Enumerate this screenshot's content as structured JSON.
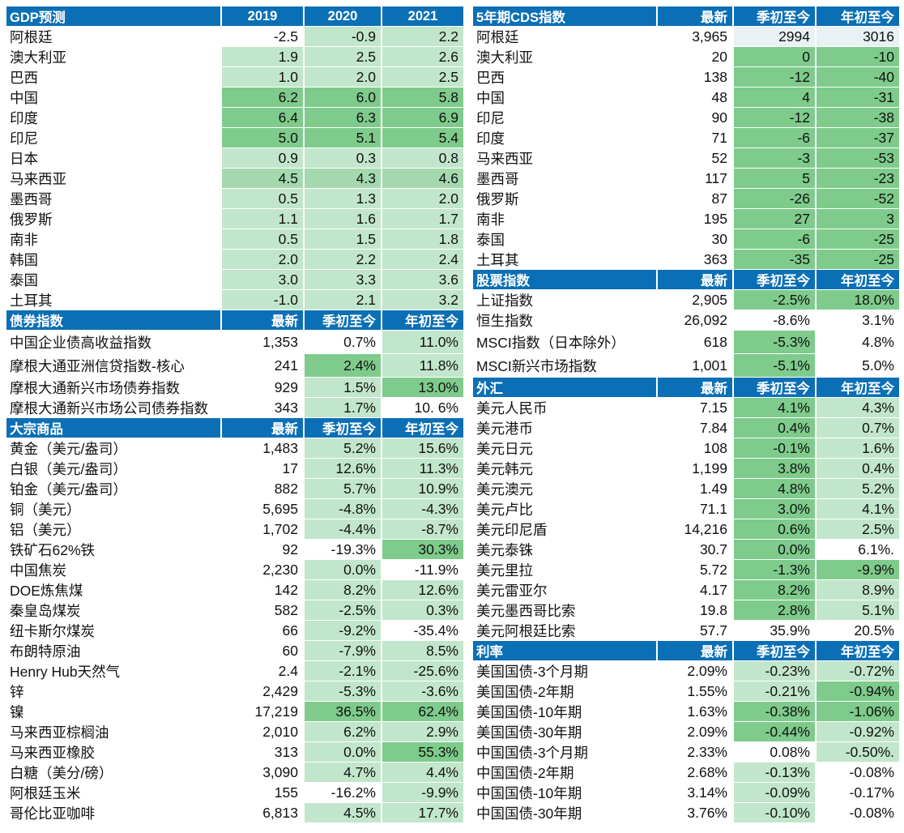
{
  "left": [
    {
      "kind": "header",
      "cells": [
        "GDP预测",
        "2019",
        "2020",
        "2021"
      ],
      "align": [
        "label",
        "yr",
        "yr",
        "yr"
      ]
    },
    {
      "cells": [
        "阿根廷",
        "-2.5",
        "-0.9",
        "2.2"
      ],
      "shades": [
        "w",
        "w",
        "l",
        "l"
      ]
    },
    {
      "cells": [
        "澳大利亚",
        "1.9",
        "2.5",
        "2.6"
      ],
      "shades": [
        "w",
        "l",
        "l",
        "l"
      ]
    },
    {
      "cells": [
        "巴西",
        "1.0",
        "2.0",
        "2.5"
      ],
      "shades": [
        "w",
        "l",
        "l",
        "l"
      ]
    },
    {
      "cells": [
        "中国",
        "6.2",
        "6.0",
        "5.8"
      ],
      "shades": [
        "w",
        "d",
        "d",
        "d"
      ]
    },
    {
      "cells": [
        "印度",
        "6.4",
        "6.3",
        "6.9"
      ],
      "shades": [
        "w",
        "d",
        "d",
        "d"
      ]
    },
    {
      "cells": [
        "印尼",
        "5.0",
        "5.1",
        "5.4"
      ],
      "shades": [
        "w",
        "d",
        "d",
        "d"
      ]
    },
    {
      "cells": [
        "日本",
        "0.9",
        "0.3",
        "0.8"
      ],
      "shades": [
        "w",
        "l",
        "l",
        "l"
      ]
    },
    {
      "cells": [
        "马来西亚",
        "4.5",
        "4.3",
        "4.6"
      ],
      "shades": [
        "w",
        "m",
        "m",
        "m"
      ]
    },
    {
      "cells": [
        "墨西哥",
        "0.5",
        "1.3",
        "2.0"
      ],
      "shades": [
        "w",
        "l",
        "l",
        "l"
      ]
    },
    {
      "cells": [
        "俄罗斯",
        "1.1",
        "1.6",
        "1.7"
      ],
      "shades": [
        "w",
        "l",
        "l",
        "l"
      ]
    },
    {
      "cells": [
        "南非",
        "0.5",
        "1.5",
        "1.8"
      ],
      "shades": [
        "w",
        "l",
        "l",
        "l"
      ]
    },
    {
      "cells": [
        "韩国",
        "2.0",
        "2.2",
        "2.4"
      ],
      "shades": [
        "w",
        "l",
        "l",
        "l"
      ]
    },
    {
      "cells": [
        "泰国",
        "3.0",
        "3.3",
        "3.6"
      ],
      "shades": [
        "w",
        "l",
        "l",
        "l"
      ]
    },
    {
      "cells": [
        "土耳其",
        "-1.0",
        "2.1",
        "3.2"
      ],
      "shades": [
        "w",
        "l",
        "l",
        "l"
      ]
    },
    {
      "kind": "header",
      "cells": [
        "债券指数",
        "最新",
        "季初至今",
        "年初至今"
      ],
      "align": [
        "label",
        "num",
        "num",
        "num"
      ]
    },
    {
      "tall": true,
      "cells": [
        "中国企业债高收益指数",
        "1,353",
        "0.7%",
        "11.0%"
      ],
      "shades": [
        "w",
        "w",
        "w",
        "l"
      ]
    },
    {
      "tall": true,
      "cells": [
        "摩根大通亚洲信贷指数-核心",
        "241",
        "2.4%",
        "11.8%"
      ],
      "shades": [
        "w",
        "w",
        "d",
        "l"
      ]
    },
    {
      "cells": [
        "摩根大通新兴市场债券指数",
        "929",
        "1.5%",
        "13.0%"
      ],
      "shades": [
        "w",
        "w",
        "l",
        "d"
      ]
    },
    {
      "cells": [
        "摩根大通新兴市场公司债券指数",
        "343",
        "1.7%",
        "10. 6%"
      ],
      "shades": [
        "w",
        "w",
        "l",
        "w"
      ]
    },
    {
      "kind": "header",
      "cells": [
        "大宗商品",
        "最新",
        "季初至今",
        "年初至今"
      ],
      "align": [
        "label",
        "num",
        "num",
        "num"
      ]
    },
    {
      "cells": [
        "黄金（美元/盎司）",
        "1,483",
        "5.2%",
        "15.6%"
      ],
      "shades": [
        "w",
        "w",
        "l",
        "l"
      ]
    },
    {
      "cells": [
        "白银（美元/盎司）",
        "17",
        "12.6%",
        "11.3%"
      ],
      "shades": [
        "w",
        "w",
        "l",
        "l"
      ]
    },
    {
      "cells": [
        "铂金（美元/盎司）",
        "882",
        "5.7%",
        "10.9%"
      ],
      "shades": [
        "w",
        "w",
        "l",
        "l"
      ]
    },
    {
      "cells": [
        "铜（美元）",
        "5,695",
        "-4.8%",
        "-4.3%"
      ],
      "shades": [
        "w",
        "w",
        "l",
        "l"
      ]
    },
    {
      "cells": [
        "铝（美元）",
        "1,702",
        "-4.4%",
        "-8.7%"
      ],
      "shades": [
        "w",
        "w",
        "l",
        "l"
      ]
    },
    {
      "cells": [
        "铁矿石62%铁",
        "92",
        "-19.3%",
        "30.3%"
      ],
      "shades": [
        "w",
        "w",
        "w",
        "d"
      ]
    },
    {
      "cells": [
        "中国焦炭",
        "2,230",
        "0.0%",
        "-11.9%"
      ],
      "shades": [
        "w",
        "w",
        "l",
        "w"
      ]
    },
    {
      "cells": [
        "DOE炼焦煤",
        "142",
        "8.2%",
        "12.6%"
      ],
      "shades": [
        "w",
        "w",
        "l",
        "l"
      ]
    },
    {
      "cells": [
        "秦皇岛煤炭",
        "582",
        "-2.5%",
        "0.3%"
      ],
      "shades": [
        "w",
        "w",
        "l",
        "l"
      ]
    },
    {
      "cells": [
        "纽卡斯尔煤炭",
        "66",
        "-9.2%",
        "-35.4%"
      ],
      "shades": [
        "w",
        "w",
        "l",
        "w"
      ]
    },
    {
      "cells": [
        "布朗特原油",
        "60",
        "-7.9%",
        "8.5%"
      ],
      "shades": [
        "w",
        "w",
        "l",
        "l"
      ]
    },
    {
      "cells": [
        "Henry Hub天然气",
        "2.4",
        "-2.1%",
        "-25.6%"
      ],
      "shades": [
        "w",
        "w",
        "l",
        "l"
      ]
    },
    {
      "cells": [
        "锌",
        "2,429",
        "-5.3%",
        "-3.6%"
      ],
      "shades": [
        "w",
        "w",
        "l",
        "l"
      ]
    },
    {
      "cells": [
        "镍",
        "17,219",
        "36.5%",
        "62.4%"
      ],
      "shades": [
        "w",
        "w",
        "d",
        "d"
      ]
    },
    {
      "cells": [
        "马来西亚棕榈油",
        "2,010",
        "6.2%",
        "2.9%"
      ],
      "shades": [
        "w",
        "w",
        "l",
        "l"
      ]
    },
    {
      "cells": [
        "马来西亚橡胶",
        "313",
        "0.0%",
        "55.3%"
      ],
      "shades": [
        "w",
        "w",
        "l",
        "d"
      ]
    },
    {
      "cells": [
        "白糖（美分/磅）",
        "3,090",
        "4.7%",
        "4.4%"
      ],
      "shades": [
        "w",
        "w",
        "l",
        "l"
      ]
    },
    {
      "cells": [
        "阿根廷玉米",
        "155",
        "-16.2%",
        "-9.9%"
      ],
      "shades": [
        "w",
        "w",
        "w",
        "l"
      ]
    },
    {
      "cells": [
        "哥伦比亚咖啡",
        "6,813",
        "4.5%",
        "17.7%"
      ],
      "shades": [
        "w",
        "w",
        "l",
        "l"
      ]
    }
  ],
  "right": [
    {
      "kind": "header",
      "cells": [
        "5年期CDS指数",
        "最新",
        "季初至今",
        "年初至今"
      ],
      "align": [
        "label",
        "num",
        "num",
        "num"
      ]
    },
    {
      "cells": [
        "阿根廷",
        "3,965",
        "2994",
        "3016"
      ],
      "shades": [
        "w",
        "w",
        "n",
        "n"
      ]
    },
    {
      "cells": [
        "澳大利亚",
        "20",
        "0",
        "-10"
      ],
      "shades": [
        "w",
        "w",
        "d",
        "d"
      ]
    },
    {
      "cells": [
        "巴西",
        "138",
        "-12",
        "-40"
      ],
      "shades": [
        "w",
        "w",
        "d",
        "d"
      ]
    },
    {
      "cells": [
        "中国",
        "48",
        "4",
        "-31"
      ],
      "shades": [
        "w",
        "w",
        "d",
        "d"
      ]
    },
    {
      "cells": [
        "印尼",
        "90",
        "-12",
        "-38"
      ],
      "shades": [
        "w",
        "w",
        "d",
        "d"
      ]
    },
    {
      "cells": [
        "印度",
        "71",
        "-6",
        "-37"
      ],
      "shades": [
        "w",
        "w",
        "d",
        "d"
      ]
    },
    {
      "cells": [
        "马来西亚",
        "52",
        "-3",
        "-53"
      ],
      "shades": [
        "w",
        "w",
        "d",
        "d"
      ]
    },
    {
      "cells": [
        "墨西哥",
        "117",
        "5",
        "-23"
      ],
      "shades": [
        "w",
        "w",
        "d",
        "d"
      ]
    },
    {
      "cells": [
        "俄罗斯",
        "87",
        "-26",
        "-52"
      ],
      "shades": [
        "w",
        "w",
        "d",
        "d"
      ]
    },
    {
      "cells": [
        "南非",
        "195",
        "27",
        "3"
      ],
      "shades": [
        "w",
        "w",
        "d",
        "d"
      ]
    },
    {
      "cells": [
        "泰国",
        "30",
        "-6",
        "-25"
      ],
      "shades": [
        "w",
        "w",
        "d",
        "d"
      ]
    },
    {
      "cells": [
        "土耳其",
        "363",
        "-35",
        "-25"
      ],
      "shades": [
        "w",
        "w",
        "d",
        "d"
      ]
    },
    {
      "kind": "header",
      "cells": [
        "股票指数",
        "最新",
        "季初至今",
        "年初至今"
      ],
      "align": [
        "label",
        "num",
        "num",
        "num"
      ]
    },
    {
      "cells": [
        "上证指数",
        "2,905",
        "-2.5%",
        "18.0%"
      ],
      "shades": [
        "w",
        "w",
        "d",
        "d"
      ]
    },
    {
      "cells": [
        "恒生指数",
        "26,092",
        "-8.6%",
        "3.1%"
      ],
      "shades": [
        "w",
        "w",
        "w",
        "w"
      ]
    },
    {
      "tall": true,
      "cells": [
        "MSCI指数（日本除外）",
        "618",
        "-5.3%",
        "4.8%"
      ],
      "shades": [
        "w",
        "w",
        "d",
        "w"
      ]
    },
    {
      "tall": true,
      "cells": [
        "MSCI新兴市场指数",
        "1,001",
        "-5.1%",
        "5.0%"
      ],
      "shades": [
        "w",
        "w",
        "d",
        "w"
      ]
    },
    {
      "kind": "header",
      "cells": [
        "外汇",
        "最新",
        "季初至今",
        "年初至今"
      ],
      "align": [
        "label",
        "num",
        "num",
        "num"
      ]
    },
    {
      "cells": [
        "美元人民币",
        "7.15",
        "4.1%",
        "4.3%"
      ],
      "shades": [
        "w",
        "w",
        "d",
        "l"
      ]
    },
    {
      "cells": [
        "美元港币",
        "7.84",
        "0.4%",
        "0.7%"
      ],
      "shades": [
        "w",
        "w",
        "d",
        "l"
      ]
    },
    {
      "cells": [
        "美元日元",
        "108",
        "-0.1%",
        "1.6%"
      ],
      "shades": [
        "w",
        "w",
        "d",
        "l"
      ]
    },
    {
      "cells": [
        "美元韩元",
        "1,199",
        "3.8%",
        "0.4%"
      ],
      "shades": [
        "w",
        "w",
        "d",
        "l"
      ]
    },
    {
      "cells": [
        "美元澳元",
        "1.49",
        "4.8%",
        "5.2%"
      ],
      "shades": [
        "w",
        "w",
        "d",
        "l"
      ]
    },
    {
      "cells": [
        "美元卢比",
        "71.1",
        "3.0%",
        "4.1%"
      ],
      "shades": [
        "w",
        "w",
        "d",
        "l"
      ]
    },
    {
      "cells": [
        "美元印尼盾",
        "14,216",
        "0.6%",
        "2.5%"
      ],
      "shades": [
        "w",
        "w",
        "d",
        "l"
      ]
    },
    {
      "cells": [
        "美元泰铢",
        "30.7",
        "0.0%",
        "6.1%."
      ],
      "shades": [
        "w",
        "w",
        "d",
        "w"
      ]
    },
    {
      "cells": [
        "美元里拉",
        "5.72",
        "-1.3%",
        "-9.9%"
      ],
      "shades": [
        "w",
        "w",
        "d",
        "d"
      ]
    },
    {
      "cells": [
        "美元雷亚尔",
        "4.17",
        "8.2%",
        "8.9%"
      ],
      "shades": [
        "w",
        "w",
        "d",
        "l"
      ]
    },
    {
      "cells": [
        "美元墨西哥比索",
        "19.8",
        "2.8%",
        "5.1%"
      ],
      "shades": [
        "w",
        "w",
        "d",
        "l"
      ]
    },
    {
      "cells": [
        "美元阿根廷比索",
        "57.7",
        "35.9%",
        "20.5%"
      ],
      "shades": [
        "w",
        "w",
        "w",
        "w"
      ]
    },
    {
      "kind": "header",
      "cells": [
        "利率",
        "最新",
        "季初至今",
        "年初至今"
      ],
      "align": [
        "label",
        "num",
        "num",
        "num"
      ]
    },
    {
      "cells": [
        "美国国债-3个月期",
        "2.09%",
        "-0.23%",
        "-0.72%"
      ],
      "shades": [
        "w",
        "w",
        "l",
        "l"
      ]
    },
    {
      "cells": [
        "美国国债-2年期",
        "1.55%",
        "-0.21%",
        "-0.94%"
      ],
      "shades": [
        "w",
        "w",
        "l",
        "d"
      ]
    },
    {
      "cells": [
        "美国国债-10年期",
        "1.63%",
        "-0.38%",
        "-1.06%"
      ],
      "shades": [
        "w",
        "w",
        "d",
        "d"
      ]
    },
    {
      "cells": [
        "美国国债-30年期",
        "2.09%",
        "-0.44%",
        "-0.92%"
      ],
      "shades": [
        "w",
        "w",
        "d",
        "l"
      ]
    },
    {
      "cells": [
        "中国国债-3个月期",
        "2.33%",
        "0.08%",
        "-0.50%."
      ],
      "shades": [
        "w",
        "w",
        "w",
        "l"
      ]
    },
    {
      "cells": [
        "中国国债-2年期",
        "2.68%",
        "-0.13%",
        "-0.08%"
      ],
      "shades": [
        "w",
        "w",
        "l",
        "w"
      ]
    },
    {
      "cells": [
        "中国国债-10年期",
        "3.14%",
        "-0.09%",
        "-0.17%"
      ],
      "shades": [
        "w",
        "w",
        "l",
        "w"
      ]
    },
    {
      "cells": [
        "中国国债-30年期",
        "3.76%",
        "-0.10%",
        "-0.08%"
      ],
      "shades": [
        "w",
        "w",
        "l",
        "w"
      ]
    }
  ]
}
